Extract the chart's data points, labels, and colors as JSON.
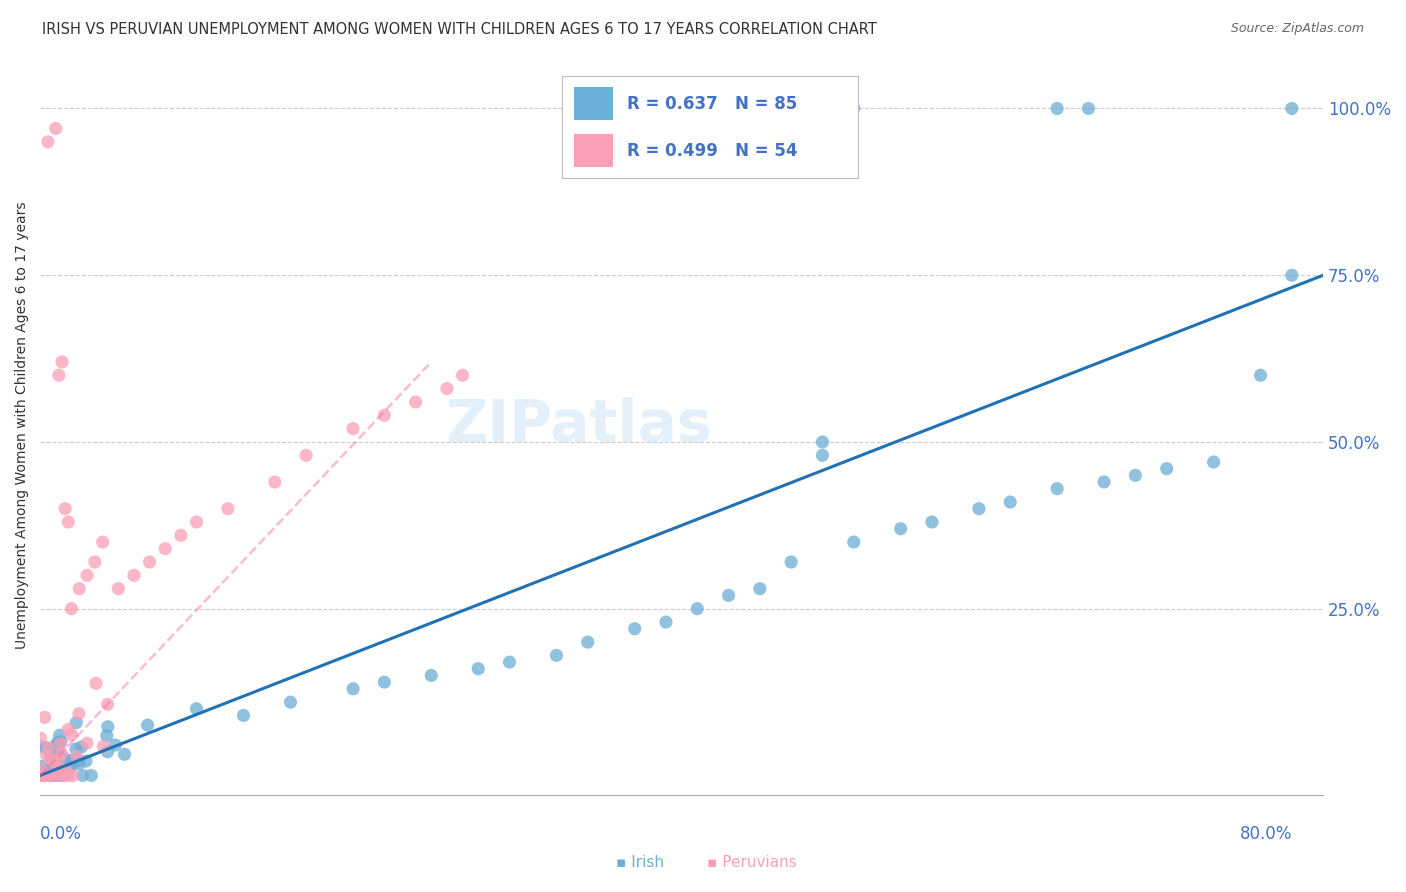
{
  "title": "IRISH VS PERUVIAN UNEMPLOYMENT AMONG WOMEN WITH CHILDREN AGES 6 TO 17 YEARS CORRELATION CHART",
  "source": "Source: ZipAtlas.com",
  "ylabel": "Unemployment Among Women with Children Ages 6 to 17 years",
  "ytick_labels": [
    "100.0%",
    "75.0%",
    "50.0%",
    "25.0%"
  ],
  "ytick_vals": [
    1.0,
    0.75,
    0.5,
    0.25
  ],
  "xlim": [
    0.0,
    0.82
  ],
  "ylim": [
    -0.03,
    1.08
  ],
  "legend_irish_R": "R = 0.637",
  "legend_irish_N": "N = 85",
  "legend_peruvian_R": "R = 0.499",
  "legend_peruvian_N": "N = 54",
  "irish_color": "#6baed6",
  "peruvian_color": "#fa9fb5",
  "irish_line_color": "#2171b5",
  "peruvian_line_color": "#f768a1",
  "legend_text_color": "#4472c4",
  "watermark": "ZIPatlas",
  "background_color": "#ffffff"
}
